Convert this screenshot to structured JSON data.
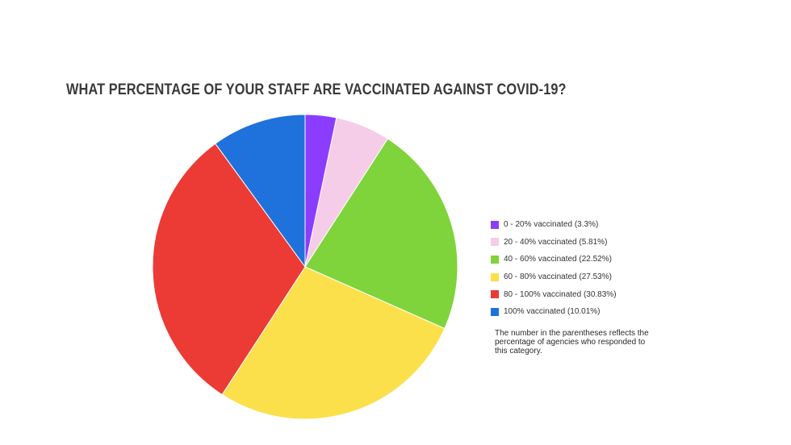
{
  "chart_data": {
    "type": "pie",
    "title": "WHAT PERCENTAGE OF YOUR STAFF ARE VACCINATED AGAINST COVID-19?",
    "slices": [
      {
        "label": "0 - 20% vaccinated (3.3%)",
        "value": 3.3,
        "color": "#8b3dff"
      },
      {
        "label": "20 - 40% vaccinated (5.81%)",
        "value": 5.81,
        "color": "#f5cde8"
      },
      {
        "label": "40 - 60% vaccinated (22.52%)",
        "value": 22.52,
        "color": "#7ed43a"
      },
      {
        "label": "60 - 80% vaccinated (27.53%)",
        "value": 27.53,
        "color": "#fbe04c"
      },
      {
        "label": "80 - 100% vaccinated (30.83%)",
        "value": 30.83,
        "color": "#ec3a35"
      },
      {
        "label": "100% vaccinated (10.01%)",
        "value": 10.01,
        "color": "#1f72dc"
      }
    ],
    "start_angle": "12 o'clock",
    "direction": "clockwise",
    "legend_position": "right",
    "note": "The number in the parentheses reflects the percentage of agencies who responded to this category."
  }
}
